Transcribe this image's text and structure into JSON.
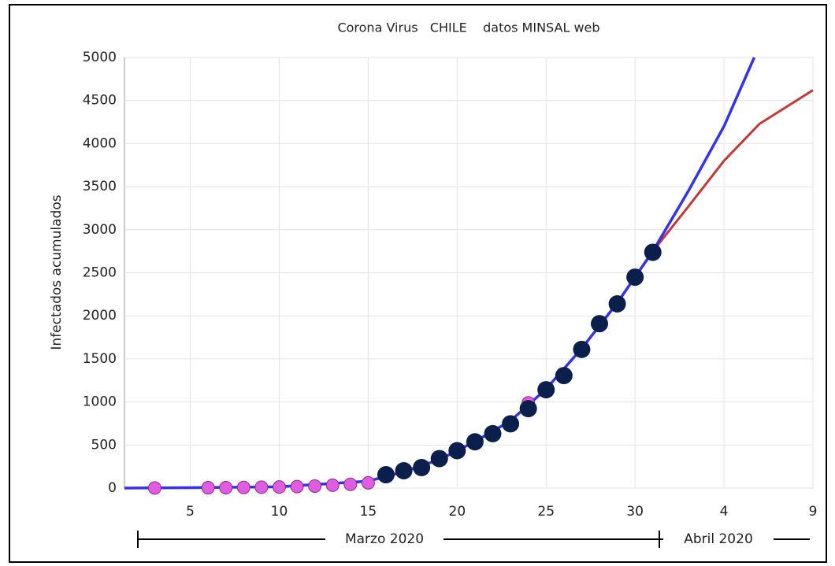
{
  "chart_data": {
    "type": "line",
    "title": "Corona Virus   CHILE    datos MINSAL web",
    "y_label": "Infectados acumulados",
    "xlim": [
      1.3,
      40
    ],
    "xticks": [
      5,
      10,
      15,
      20,
      25,
      30,
      {
        "value": 35,
        "label": "4"
      },
      {
        "value": 40,
        "label": "9"
      }
    ],
    "ylim": [
      0,
      5000
    ],
    "yticks": [
      0,
      500,
      1000,
      1500,
      2000,
      2500,
      3000,
      3500,
      4000,
      4500,
      5000
    ],
    "grid": true,
    "periods": [
      {
        "label": "Marzo 2020"
      },
      {
        "label": "Abril 2020"
      }
    ],
    "series": [
      {
        "style": "line",
        "color": "#c03a3a",
        "x": [
          1.3,
          5,
          10,
          15,
          17,
          19,
          21,
          23,
          25,
          27,
          29,
          31,
          33,
          35,
          37,
          40
        ],
        "values": [
          0,
          5,
          15,
          80,
          190,
          330,
          540,
          780,
          1150,
          1620,
          2150,
          2750,
          3270,
          3800,
          4230,
          4620
        ]
      },
      {
        "style": "line",
        "color": "#3333ee",
        "x": [
          1.3,
          5,
          10,
          15,
          17,
          19,
          21,
          23,
          25,
          27,
          29,
          31,
          33,
          35,
          36.7
        ],
        "values": [
          0,
          5,
          15,
          80,
          190,
          330,
          540,
          780,
          1150,
          1620,
          2150,
          2750,
          3450,
          4200,
          5000
        ]
      },
      {
        "style": "markers",
        "color": "#e05ce0",
        "x": [
          3,
          6,
          7,
          8,
          9,
          10,
          11,
          12,
          13,
          14,
          15,
          24
        ],
        "values": [
          1,
          4,
          5,
          7,
          10,
          13,
          17,
          23,
          33,
          43,
          61,
          990
        ]
      },
      {
        "style": "dots",
        "color": "#0b1f4d",
        "x": [
          16,
          17,
          18,
          19,
          20,
          21,
          22,
          23,
          24,
          25,
          26,
          27,
          28,
          29,
          30,
          31
        ],
        "values": [
          155,
          201,
          238,
          342,
          434,
          537,
          632,
          746,
          922,
          1142,
          1306,
          1610,
          1909,
          2139,
          2449,
          2738
        ]
      }
    ]
  }
}
